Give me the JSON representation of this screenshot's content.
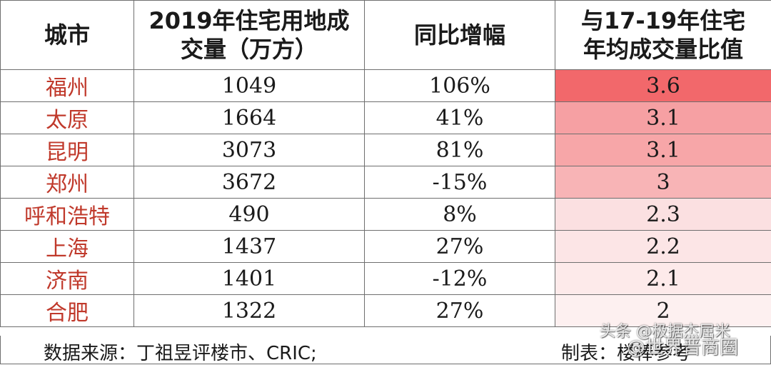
{
  "table": {
    "headers": [
      [
        "城市"
      ],
      [
        "2019年住宅用地成",
        "交量（万方）"
      ],
      [
        "同比增幅"
      ],
      [
        "与17-19年住宅",
        "年均成交量比值"
      ]
    ],
    "rows": [
      {
        "city": "福州",
        "volume": "1049",
        "growth": "106%",
        "ratio": "3.6",
        "heat_color": "#f2686b"
      },
      {
        "city": "太原",
        "volume": "1664",
        "growth": "41%",
        "ratio": "3.1",
        "heat_color": "#f6a0a3"
      },
      {
        "city": "昆明",
        "volume": "3073",
        "growth": "81%",
        "ratio": "3.1",
        "heat_color": "#f7a6a8"
      },
      {
        "city": "郑州",
        "volume": "3672",
        "growth": "-15%",
        "ratio": "3",
        "heat_color": "#f8b4b6"
      },
      {
        "city": "呼和浩特",
        "volume": "490",
        "growth": "8%",
        "ratio": "2.3",
        "heat_color": "#fbe0e1"
      },
      {
        "city": "上海",
        "volume": "1437",
        "growth": "27%",
        "ratio": "2.2",
        "heat_color": "#fce5e6"
      },
      {
        "city": "济南",
        "volume": "1401",
        "growth": "-12%",
        "ratio": "2.1",
        "heat_color": "#fdeaea"
      },
      {
        "city": "合肥",
        "volume": "1322",
        "growth": "27%",
        "ratio": "2",
        "heat_color": "#fdf0f0"
      }
    ]
  },
  "footer": {
    "source": "数据来源：丁祖昱评楼市、CRIC;",
    "maker": "制表：楼棒参考"
  },
  "watermark": {
    "line1": "头条 @极据杰屈米",
    "line2": "@世界晋商圈"
  }
}
